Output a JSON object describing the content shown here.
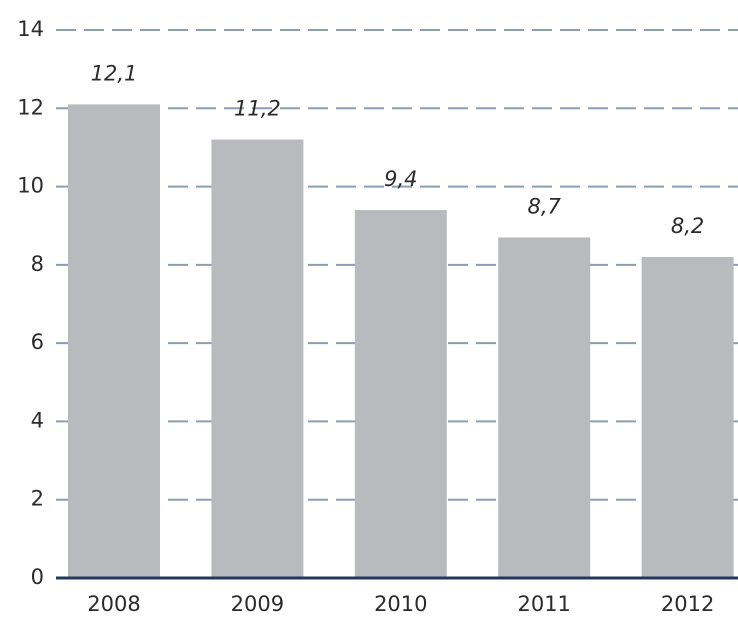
{
  "chart_data": {
    "type": "bar",
    "categories": [
      "2008",
      "2009",
      "2010",
      "2011",
      "2012"
    ],
    "values": [
      12.1,
      11.2,
      9.4,
      8.7,
      8.2
    ],
    "value_labels": [
      "12,1",
      "11,2",
      "9,4",
      "8,7",
      "8,2"
    ],
    "color": "#b9babe",
    "ylim": [
      0,
      14
    ],
    "yticks": [
      0,
      2,
      4,
      6,
      8,
      10,
      12,
      14
    ],
    "grid": true
  }
}
